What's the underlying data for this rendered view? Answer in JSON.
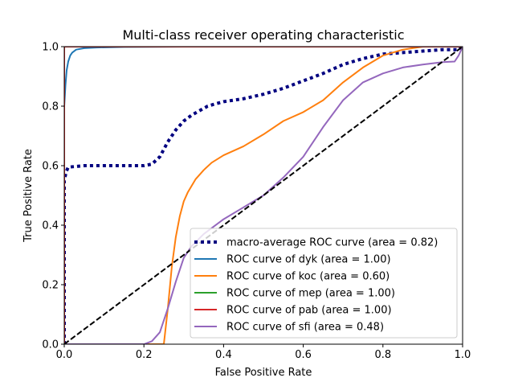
{
  "chart_data": {
    "type": "line",
    "title": "Multi-class receiver operating characteristic",
    "xlabel": "False Positive Rate",
    "ylabel": "True Positive Rate",
    "xlim": [
      0,
      1
    ],
    "ylim": [
      0,
      1
    ],
    "xticks": [
      "0.0",
      "0.2",
      "0.4",
      "0.6",
      "0.8",
      "1.0"
    ],
    "yticks": [
      "0.0",
      "0.2",
      "0.4",
      "0.6",
      "0.8",
      "1.0"
    ],
    "grid": false,
    "legend_position": "lower-right",
    "series": [
      {
        "name": "macro-average ROC curve (area = 0.82)",
        "color": "#000080",
        "style": "dotted-thick",
        "x": [
          0.0,
          0.0,
          0.005,
          0.01,
          0.05,
          0.1,
          0.15,
          0.2,
          0.22,
          0.24,
          0.26,
          0.28,
          0.3,
          0.32,
          0.34,
          0.36,
          0.38,
          0.4,
          0.45,
          0.5,
          0.55,
          0.6,
          0.65,
          0.7,
          0.75,
          0.8,
          0.85,
          0.9,
          0.95,
          0.99,
          1.0
        ],
        "y": [
          0.0,
          0.55,
          0.58,
          0.595,
          0.6,
          0.6,
          0.6,
          0.6,
          0.605,
          0.63,
          0.68,
          0.72,
          0.75,
          0.77,
          0.785,
          0.8,
          0.808,
          0.815,
          0.825,
          0.84,
          0.86,
          0.885,
          0.91,
          0.94,
          0.96,
          0.975,
          0.98,
          0.985,
          0.99,
          0.99,
          1.0
        ]
      },
      {
        "name": "ROC curve of dyk (area = 1.00)",
        "color": "#1f77b4",
        "style": "solid",
        "x": [
          0.0,
          0.0,
          0.003,
          0.006,
          0.01,
          0.015,
          0.02,
          0.03,
          0.05,
          0.08,
          0.15,
          0.3,
          0.6,
          1.0
        ],
        "y": [
          0.0,
          0.8,
          0.87,
          0.92,
          0.95,
          0.97,
          0.98,
          0.99,
          0.995,
          0.997,
          0.999,
          1.0,
          1.0,
          1.0
        ]
      },
      {
        "name": "ROC curve of koc (area = 0.60)",
        "color": "#ff7f0e",
        "style": "solid",
        "x": [
          0.0,
          0.25,
          0.26,
          0.27,
          0.28,
          0.29,
          0.3,
          0.31,
          0.33,
          0.35,
          0.37,
          0.4,
          0.45,
          0.5,
          0.55,
          0.6,
          0.65,
          0.7,
          0.75,
          0.8,
          0.85,
          0.9,
          1.0
        ],
        "y": [
          0.0,
          0.0,
          0.12,
          0.26,
          0.36,
          0.43,
          0.48,
          0.51,
          0.555,
          0.585,
          0.61,
          0.635,
          0.665,
          0.705,
          0.75,
          0.78,
          0.82,
          0.88,
          0.93,
          0.97,
          0.99,
          1.0,
          1.0
        ]
      },
      {
        "name": "ROC curve of mep (area = 1.00)",
        "color": "#2ca02c",
        "style": "solid",
        "x": [
          0.0,
          0.0,
          1.0
        ],
        "y": [
          0.0,
          1.0,
          1.0
        ]
      },
      {
        "name": "ROC curve of pab (area = 1.00)",
        "color": "#d62728",
        "style": "solid",
        "x": [
          0.0,
          0.0,
          1.0
        ],
        "y": [
          0.0,
          1.0,
          1.0
        ]
      },
      {
        "name": "ROC curve of sfi (area = 0.48)",
        "color": "#9467bd",
        "style": "solid",
        "x": [
          0.0,
          0.2,
          0.22,
          0.24,
          0.26,
          0.28,
          0.3,
          0.32,
          0.35,
          0.4,
          0.45,
          0.5,
          0.55,
          0.6,
          0.65,
          0.7,
          0.75,
          0.8,
          0.85,
          0.9,
          0.95,
          0.98,
          0.99,
          1.0
        ],
        "y": [
          0.0,
          0.0,
          0.01,
          0.04,
          0.12,
          0.21,
          0.29,
          0.33,
          0.37,
          0.42,
          0.46,
          0.5,
          0.56,
          0.63,
          0.73,
          0.82,
          0.88,
          0.91,
          0.93,
          0.94,
          0.948,
          0.95,
          0.97,
          1.0
        ]
      },
      {
        "name": "",
        "color": "#000000",
        "style": "dashed",
        "x": [
          0.0,
          1.0
        ],
        "y": [
          0.0,
          1.0
        ]
      }
    ]
  }
}
